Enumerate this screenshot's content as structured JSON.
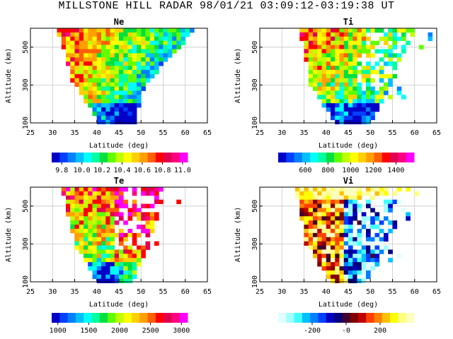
{
  "title": "MILLSTONE HILL RADAR   98/01/21   03:09:12-03:19:38 UT",
  "chart_data": [
    {
      "type": "heatmap",
      "title": "Ne",
      "xlabel": "Latitude (deg)",
      "ylabel": "Altitude (km)",
      "xlim": [
        25,
        65
      ],
      "ylim": [
        100,
        600
      ],
      "xticks": [
        25,
        30,
        35,
        40,
        45,
        50,
        55,
        60,
        65
      ],
      "yticks": [
        100,
        300,
        500
      ],
      "grid": true,
      "colorbar": {
        "min": 9.7,
        "max": 11.05,
        "ticks": [
          9.8,
          10.0,
          10.2,
          10.4,
          10.6,
          10.8,
          11.0
        ]
      },
      "seed": 11,
      "profile": "ne",
      "domain": {
        "left": [
          [
            600,
            31
          ],
          [
            320,
            34.5
          ],
          [
            100,
            40.5
          ]
        ],
        "right": [
          [
            600,
            62.5
          ],
          [
            300,
            51
          ],
          [
            100,
            48.5
          ]
        ]
      }
    },
    {
      "type": "heatmap",
      "title": "Ti",
      "xlabel": "Latitude (deg)",
      "ylabel": "Altitude (km)",
      "xlim": [
        25,
        65
      ],
      "ylim": [
        100,
        600
      ],
      "xticks": [
        25,
        30,
        35,
        40,
        45,
        50,
        55,
        60,
        65
      ],
      "yticks": [
        100,
        300,
        500
      ],
      "grid": true,
      "colorbar": {
        "min": 360,
        "max": 1560,
        "ticks": [
          600,
          800,
          1000,
          1200,
          1400
        ]
      },
      "seed": 23,
      "profile": "ti",
      "domain": {
        "left": [
          [
            600,
            34
          ],
          [
            300,
            36.5
          ],
          [
            100,
            42
          ]
        ],
        "right": [
          [
            600,
            60
          ],
          [
            300,
            55
          ],
          [
            100,
            50
          ]
        ]
      }
    },
    {
      "type": "heatmap",
      "title": "Te",
      "xlabel": "Latitude (deg)",
      "ylabel": "Altitude (km)",
      "xlim": [
        25,
        65
      ],
      "ylim": [
        100,
        600
      ],
      "xticks": [
        25,
        30,
        35,
        40,
        45,
        50,
        55,
        60,
        65
      ],
      "yticks": [
        100,
        300,
        500
      ],
      "grid": true,
      "colorbar": {
        "min": 900,
        "max": 3100,
        "ticks": [
          1000,
          1500,
          2000,
          2500,
          3000
        ]
      },
      "seed": 37,
      "profile": "te",
      "domain": {
        "left": [
          [
            600,
            32
          ],
          [
            300,
            35
          ],
          [
            100,
            40
          ]
        ],
        "right": [
          [
            600,
            55
          ],
          [
            300,
            52
          ],
          [
            100,
            48
          ]
        ]
      }
    },
    {
      "type": "heatmap",
      "title": "Vi",
      "xlabel": "Latitude (deg)",
      "ylabel": "Altitude (km)",
      "xlim": [
        25,
        65
      ],
      "ylim": [
        100,
        600
      ],
      "xticks": [
        25,
        30,
        35,
        40,
        45,
        50,
        55,
        60,
        65
      ],
      "yticks": [
        100,
        300,
        500
      ],
      "grid": true,
      "colorbar": {
        "min": -400,
        "max": 400,
        "ticks": [
          -200,
          0,
          200
        ],
        "tick_labels": [
          "-200",
          "-0",
          "200"
        ]
      },
      "seed": 53,
      "profile": "vi",
      "domain": {
        "left": [
          [
            600,
            33
          ],
          [
            300,
            35.5
          ],
          [
            100,
            41
          ]
        ],
        "right": [
          [
            600,
            59
          ],
          [
            300,
            54
          ],
          [
            100,
            49
          ]
        ]
      }
    }
  ]
}
